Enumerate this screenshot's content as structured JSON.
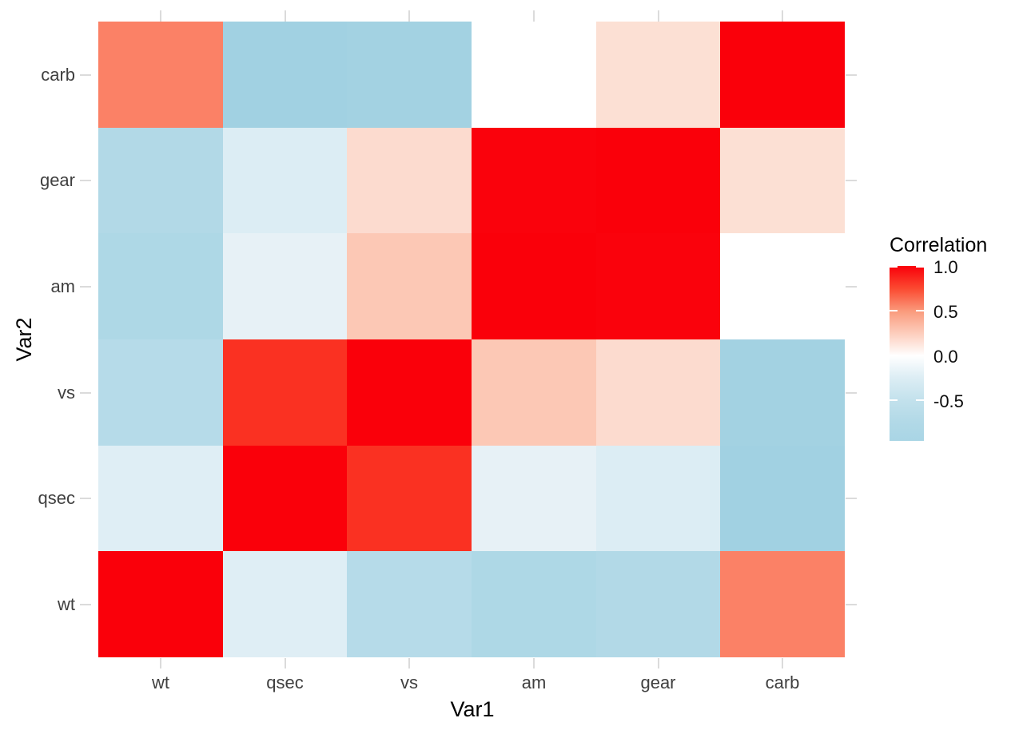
{
  "figure": {
    "background": "#FFFFFF",
    "plot_type_note": "correlation heatmap"
  },
  "x_axis": {
    "title": "Var1",
    "labels": [
      "wt",
      "qsec",
      "vs",
      "am",
      "gear",
      "carb"
    ]
  },
  "y_axis": {
    "title": "Var2",
    "labels_top_to_bottom": [
      "carb",
      "gear",
      "am",
      "vs",
      "qsec",
      "wt"
    ]
  },
  "legend": {
    "title": "Correlation",
    "tick_labels": [
      "1.0",
      "0.5",
      "0.0",
      "-0.5"
    ],
    "tick_values": [
      1.0,
      0.5,
      0.0,
      -0.5
    ],
    "domain": [
      -0.95,
      1.0
    ],
    "gradient_stops": [
      [
        "0%",
        "#FA000A"
      ],
      [
        "13%",
        "#FB4A31"
      ],
      [
        "26%",
        "#FA9B7D"
      ],
      [
        "39%",
        "#FDCFBF"
      ],
      [
        "51.4%",
        "#FFFFFF"
      ],
      [
        "64%",
        "#DCEDF4"
      ],
      [
        "77%",
        "#C2E1EC"
      ],
      [
        "89%",
        "#B2D9E7"
      ],
      [
        "100%",
        "#A9D5E5"
      ]
    ]
  },
  "chart_data": {
    "type": "heatmap",
    "title": "",
    "xlabel": "Var1",
    "ylabel": "Var2",
    "legend_title": "Correlation",
    "x_categories": [
      "wt",
      "qsec",
      "vs",
      "am",
      "gear",
      "carb"
    ],
    "y_categories_top_to_bottom": [
      "carb",
      "gear",
      "am",
      "vs",
      "qsec",
      "wt"
    ],
    "values_rows_top_to_bottom": [
      [
        0.6,
        -0.65,
        -0.6,
        0.05,
        0.2,
        1.0
      ],
      [
        -0.55,
        -0.2,
        0.2,
        0.95,
        1.0,
        0.2
      ],
      [
        -0.6,
        -0.15,
        0.3,
        1.0,
        0.95,
        0.05
      ],
      [
        -0.5,
        0.9,
        1.0,
        0.3,
        0.2,
        -0.6
      ],
      [
        -0.2,
        1.0,
        0.9,
        -0.15,
        -0.2,
        -0.65
      ],
      [
        1.0,
        -0.2,
        -0.5,
        -0.6,
        -0.55,
        0.6
      ]
    ],
    "cell_colors_rows_top_to_bottom": [
      [
        "#FB8166",
        "#A1D1E2",
        "#A3D2E2",
        "#FFFFFF",
        "#FCE0D4",
        "#FA000A"
      ],
      [
        "#B2D9E7",
        "#DCEDF4",
        "#FCDBCF",
        "#FA020C",
        "#FA000A",
        "#FCE0D4"
      ],
      [
        "#AED8E6",
        "#E7F1F6",
        "#FCC8B5",
        "#FA000A",
        "#FA020C",
        "#FFFFFF"
      ],
      [
        "#B6DBE9",
        "#FA3122",
        "#FA000A",
        "#FCC8B5",
        "#FCDBCF",
        "#A3D2E2"
      ],
      [
        "#DFEEF5",
        "#FA000A",
        "#FA3122",
        "#E7F1F6",
        "#DCEDF4",
        "#A1D1E2"
      ],
      [
        "#FA000A",
        "#DFEEF5",
        "#B6DBE9",
        "#AED8E6",
        "#B2D9E7",
        "#FB8166"
      ]
    ],
    "colorscale": {
      "low_color": "#A9D5E5",
      "mid_color": "#FFFFFF",
      "high_color": "#FA000A",
      "midpoint": 0.0
    },
    "grid": "off",
    "legend_position": "right"
  }
}
